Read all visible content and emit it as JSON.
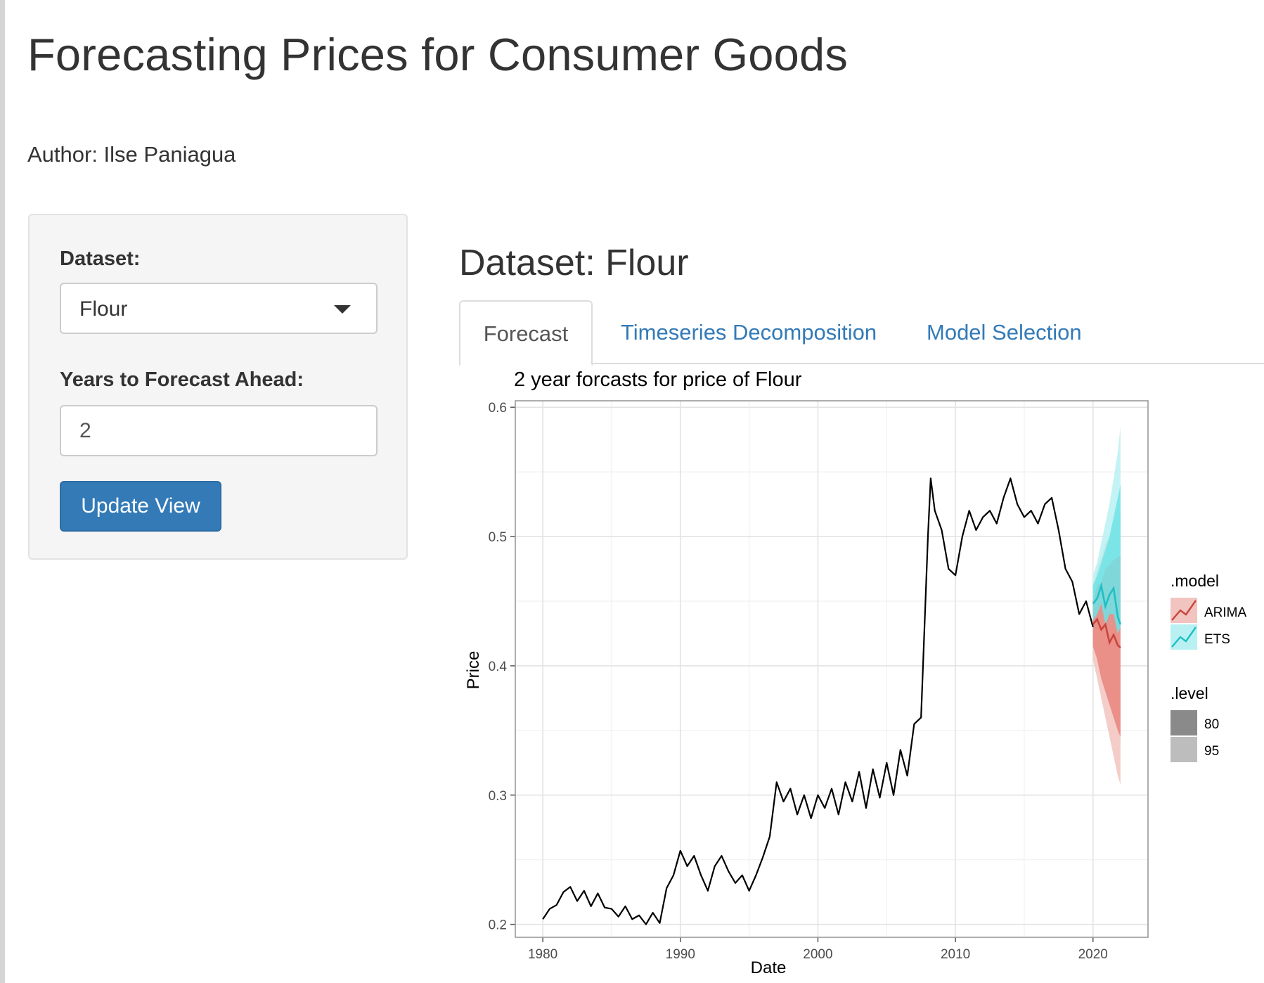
{
  "app": {
    "title": "Forecasting Prices for Consumer Goods",
    "author": "Author: Ilse Paniagua"
  },
  "sidebar": {
    "dataset_label": "Dataset:",
    "dataset_value": "Flour",
    "years_label": "Years to Forecast Ahead:",
    "years_value": "2",
    "update_button": "Update View"
  },
  "main": {
    "heading": "Dataset: Flour",
    "tabs": [
      {
        "label": "Forecast",
        "active": true
      },
      {
        "label": "Timeseries Decomposition",
        "active": false
      },
      {
        "label": "Model Selection",
        "active": false
      }
    ]
  },
  "colors": {
    "accent": "#337ab7",
    "arima": "#c9453c",
    "ets": "#1fbfc4",
    "arima_band80": "#e8857d",
    "arima_band95": "#f2c4c0",
    "ets_band80": "#6fe3e6",
    "ets_band95": "#b9f1f2"
  },
  "chart_data": {
    "type": "line",
    "title": "2 year forcasts for price of Flour",
    "xlabel": "Date",
    "ylabel": "Price",
    "xlim": [
      1978,
      2024
    ],
    "ylim": [
      0.19,
      0.605
    ],
    "xticks": [
      "1980",
      "1990",
      "2000",
      "2010",
      "2020"
    ],
    "yticks": [
      "0.2",
      "0.3",
      "0.4",
      "0.5",
      "0.6"
    ],
    "grid": true,
    "legend_placement": "right",
    "legend": {
      "model_title": ".model",
      "models": [
        "ARIMA",
        "ETS"
      ],
      "level_title": ".level",
      "levels": [
        "80",
        "95"
      ]
    },
    "history": {
      "x": [
        1980.0,
        1980.5,
        1981.0,
        1981.5,
        1982.0,
        1982.5,
        1983.0,
        1983.5,
        1984.0,
        1984.5,
        1985.0,
        1985.5,
        1986.0,
        1986.5,
        1987.0,
        1987.5,
        1988.0,
        1988.5,
        1989.0,
        1989.5,
        1990.0,
        1990.5,
        1991.0,
        1991.5,
        1992.0,
        1992.5,
        1993.0,
        1993.5,
        1994.0,
        1994.5,
        1995.0,
        1995.5,
        1996.0,
        1996.5,
        1997.0,
        1997.5,
        1998.0,
        1998.5,
        1999.0,
        1999.5,
        2000.0,
        2000.5,
        2001.0,
        2001.5,
        2002.0,
        2002.5,
        2003.0,
        2003.5,
        2004.0,
        2004.5,
        2005.0,
        2005.5,
        2006.0,
        2006.5,
        2007.0,
        2007.5,
        2008.0,
        2008.2,
        2008.5,
        2009.0,
        2009.5,
        2010.0,
        2010.5,
        2011.0,
        2011.5,
        2012.0,
        2012.5,
        2013.0,
        2013.5,
        2014.0,
        2014.5,
        2015.0,
        2015.5,
        2016.0,
        2016.5,
        2017.0,
        2017.5,
        2018.0,
        2018.5,
        2019.0,
        2019.5,
        2020.0
      ],
      "y": [
        0.204,
        0.212,
        0.215,
        0.225,
        0.229,
        0.218,
        0.226,
        0.214,
        0.224,
        0.213,
        0.212,
        0.206,
        0.214,
        0.204,
        0.207,
        0.2,
        0.209,
        0.201,
        0.228,
        0.238,
        0.257,
        0.245,
        0.253,
        0.238,
        0.226,
        0.245,
        0.253,
        0.241,
        0.232,
        0.238,
        0.226,
        0.238,
        0.252,
        0.268,
        0.31,
        0.295,
        0.305,
        0.285,
        0.3,
        0.282,
        0.3,
        0.29,
        0.305,
        0.285,
        0.31,
        0.295,
        0.318,
        0.29,
        0.32,
        0.298,
        0.325,
        0.3,
        0.335,
        0.315,
        0.355,
        0.36,
        0.5,
        0.545,
        0.52,
        0.505,
        0.475,
        0.47,
        0.5,
        0.52,
        0.505,
        0.515,
        0.52,
        0.51,
        0.53,
        0.545,
        0.525,
        0.515,
        0.52,
        0.51,
        0.525,
        0.53,
        0.505,
        0.475,
        0.465,
        0.44,
        0.45,
        0.43
      ]
    },
    "series": [
      {
        "name": "ARIMA",
        "x": [
          2020.0,
          2020.3,
          2020.6,
          2020.9,
          2021.2,
          2021.5,
          2021.8,
          2022.0
        ],
        "y": [
          0.432,
          0.436,
          0.428,
          0.432,
          0.418,
          0.424,
          0.416,
          0.414
        ],
        "lo80": [
          0.415,
          0.405,
          0.39,
          0.38,
          0.37,
          0.36,
          0.35,
          0.345
        ],
        "hi80": [
          0.45,
          0.462,
          0.465,
          0.475,
          0.478,
          0.482,
          0.484,
          0.485
        ],
        "lo95": [
          0.405,
          0.39,
          0.375,
          0.36,
          0.345,
          0.33,
          0.315,
          0.308
        ],
        "hi95": [
          0.46,
          0.475,
          0.485,
          0.495,
          0.5,
          0.51,
          0.515,
          0.52
        ]
      },
      {
        "name": "ETS",
        "x": [
          2020.0,
          2020.3,
          2020.6,
          2020.9,
          2021.2,
          2021.5,
          2021.8,
          2022.0
        ],
        "y": [
          0.448,
          0.452,
          0.462,
          0.446,
          0.455,
          0.46,
          0.438,
          0.432
        ],
        "lo80": [
          0.435,
          0.44,
          0.448,
          0.432,
          0.44,
          0.44,
          0.425,
          0.43
        ],
        "hi80": [
          0.462,
          0.47,
          0.48,
          0.49,
          0.5,
          0.515,
          0.53,
          0.54
        ],
        "lo95": [
          0.428,
          0.432,
          0.44,
          0.425,
          0.432,
          0.43,
          0.425,
          0.43
        ],
        "hi95": [
          0.47,
          0.48,
          0.495,
          0.51,
          0.525,
          0.545,
          0.565,
          0.585
        ]
      }
    ]
  }
}
